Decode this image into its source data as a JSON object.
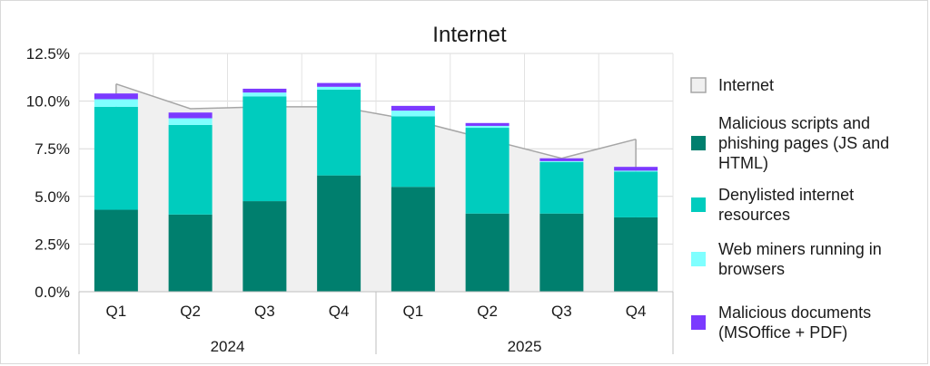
{
  "chart_data": {
    "type": "bar",
    "title": "Internet",
    "xlabel": "",
    "ylabel": "",
    "ylim": [
      0,
      12.5
    ],
    "yticks": [
      "0.0%",
      "2.5%",
      "5.0%",
      "7.5%",
      "10.0%",
      "12.5%"
    ],
    "grid": true,
    "legend_position": "right",
    "categories": [
      "Q1",
      "Q2",
      "Q3",
      "Q4",
      "Q1",
      "Q2",
      "Q3",
      "Q4"
    ],
    "groups": [
      {
        "label": "2024",
        "span": [
          0,
          3
        ]
      },
      {
        "label": "2025",
        "span": [
          4,
          7
        ]
      }
    ],
    "area_series": {
      "name": "Internet",
      "color": "#f0f0f0",
      "edge_color": "#a6a6a6",
      "values": [
        10.9,
        9.6,
        9.7,
        9.7,
        9.0,
        8.0,
        7.0,
        8.0
      ]
    },
    "series": [
      {
        "name": "Malicious scripts and phishing pages (JS and HTML)",
        "color": "#007f6e",
        "values": [
          4.3,
          4.05,
          4.75,
          6.1,
          5.5,
          4.1,
          4.1,
          3.9
        ]
      },
      {
        "name": "Denylisted internet resources",
        "color": "#00ccbe",
        "values": [
          5.4,
          4.7,
          5.5,
          4.5,
          3.7,
          4.5,
          2.7,
          2.4
        ]
      },
      {
        "name": "Web miners running in browsers",
        "color": "#7fffff",
        "values": [
          0.4,
          0.35,
          0.2,
          0.15,
          0.3,
          0.1,
          0.05,
          0.05
        ]
      },
      {
        "name": "Malicious documents (MSOffice + PDF)",
        "color": "#7b3aff",
        "values": [
          0.3,
          0.3,
          0.2,
          0.2,
          0.25,
          0.15,
          0.15,
          0.2
        ]
      }
    ],
    "legend": [
      {
        "lines": [
          "Internet"
        ],
        "color": "#f0f0f0",
        "edge": "#a6a6a6"
      },
      {
        "lines": [
          "Malicious scripts and",
          "phishing pages (JS and",
          "HTML)"
        ],
        "color": "#007f6e"
      },
      {
        "lines": [
          "Denylisted internet",
          "resources"
        ],
        "color": "#00ccbe"
      },
      {
        "lines": [
          "Web miners running in",
          "browsers"
        ],
        "color": "#7fffff"
      },
      {
        "lines": [
          "Malicious documents",
          "(MSOffice + PDF)"
        ],
        "color": "#7b3aff"
      }
    ]
  }
}
